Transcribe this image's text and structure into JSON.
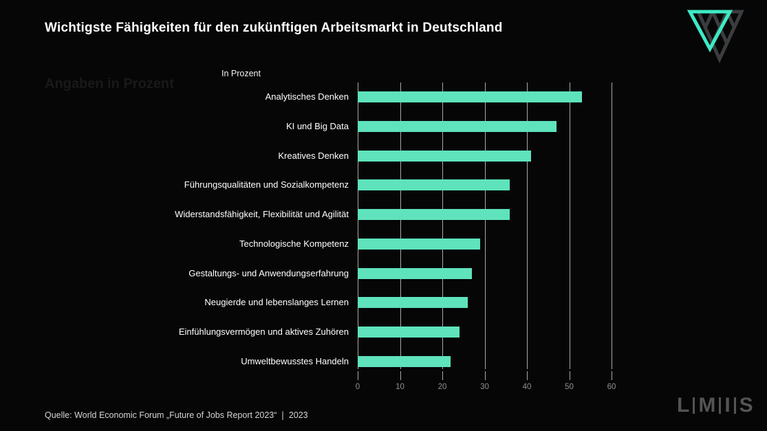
{
  "slide": {
    "title": "Wichtigste Fähigkeiten für den zukünftigen Arbeitsmarkt in Deutschland",
    "ghost_label": "Angaben in Prozent",
    "source": "Quelle: World Economic Forum „Future of Jobs Report 2023“ ❘ 2023"
  },
  "chart_data": {
    "type": "bar",
    "orientation": "horizontal",
    "title": "In Prozent",
    "categories": [
      "Analytisches Denken",
      "KI und Big Data",
      "Kreatives Denken",
      "Führungsqualitäten und Sozialkompetenz",
      "Widerstandsfähigkeit, Flexibilität und Agilität",
      "Technologische Kompetenz",
      "Gestaltungs- und Anwendungserfahrung",
      "Neugierde und lebenslanges Lernen",
      "Einfühlungsvermögen und aktives Zuhören",
      "Umweltbewusstes Handeln"
    ],
    "values": [
      53,
      47,
      41,
      36,
      36,
      29,
      27,
      26,
      24,
      22
    ],
    "xlabel": "",
    "ylabel": "",
    "xlim": [
      0,
      60
    ],
    "xticks": [
      0,
      10,
      20,
      30,
      40,
      50,
      60
    ],
    "grid": true,
    "legend": "none",
    "bar_color": "#5fe3bc"
  },
  "logos": {
    "footer_letters": [
      "L",
      "M",
      "I",
      "S"
    ],
    "triangle_teal": "#3eeac5",
    "triangle_gray": "#3a3d3f"
  },
  "colors": {
    "background": "#060606",
    "grid": "#a9a9a9",
    "tick_text": "#8f8f8f",
    "label_text": "#ffffff"
  }
}
